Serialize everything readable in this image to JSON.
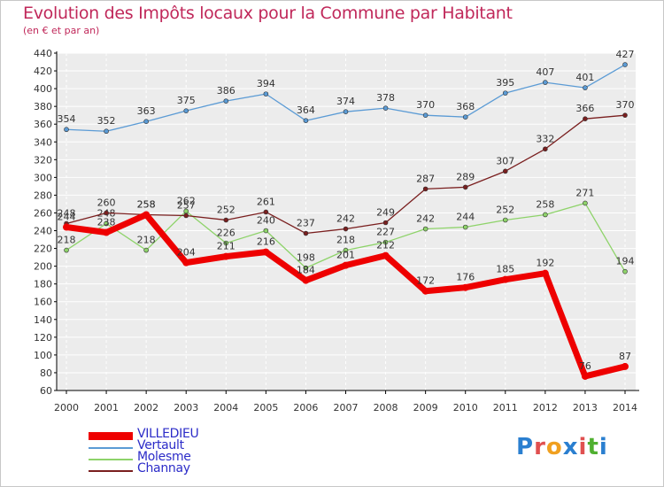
{
  "title": "Evolution des Impôts locaux pour la Commune par Habitant",
  "subtitle": "(en € et par an)",
  "logo": {
    "text": "Proxiti",
    "letters": [
      "P",
      "r",
      "o",
      "x",
      "i",
      "t",
      "i"
    ],
    "colors": [
      "#2a7fd0",
      "#e05050",
      "#f0a020",
      "#2a7fd0",
      "#e05050",
      "#50b030",
      "#2a7fd0"
    ]
  },
  "chart_data": {
    "type": "line",
    "title": "Evolution des Impôts locaux pour la Commune par Habitant",
    "subtitle": "(en € et par an)",
    "xlabel": "",
    "ylabel": "",
    "x": [
      "2000",
      "2001",
      "2002",
      "2003",
      "2004",
      "2005",
      "2006",
      "2007",
      "2008",
      "2009",
      "2010",
      "2011",
      "2012",
      "2013",
      "2014"
    ],
    "ylim": [
      60,
      440
    ],
    "yticks": [
      60,
      80,
      100,
      120,
      140,
      160,
      180,
      200,
      220,
      240,
      260,
      280,
      300,
      320,
      340,
      360,
      380,
      400,
      420,
      440
    ],
    "grid": true,
    "legend_position": "bottom-left",
    "series": [
      {
        "name": "Vertault",
        "color": "#5b9bd5",
        "width": 1.3,
        "marker": 4,
        "values": [
          354,
          352,
          363,
          375,
          386,
          394,
          364,
          374,
          378,
          370,
          368,
          395,
          407,
          401,
          427
        ]
      },
      {
        "name": "Molesme",
        "color": "#8ed36a",
        "width": 1.3,
        "marker": 4,
        "values": [
          218,
          248,
          218,
          262,
          226,
          240,
          198,
          218,
          227,
          242,
          244,
          252,
          258,
          271,
          194
        ]
      },
      {
        "name": "Channay",
        "color": "#7a1f1f",
        "width": 1.3,
        "marker": 4,
        "values": [
          248,
          260,
          258,
          257,
          252,
          261,
          237,
          242,
          249,
          287,
          289,
          307,
          332,
          366,
          370
        ]
      },
      {
        "name": "VILLEDIEU",
        "color": "#ee0000",
        "width": 7,
        "marker": 7,
        "values": [
          244,
          238,
          258,
          204,
          211,
          216,
          184,
          201,
          212,
          172,
          176,
          185,
          192,
          76,
          87
        ]
      }
    ]
  }
}
